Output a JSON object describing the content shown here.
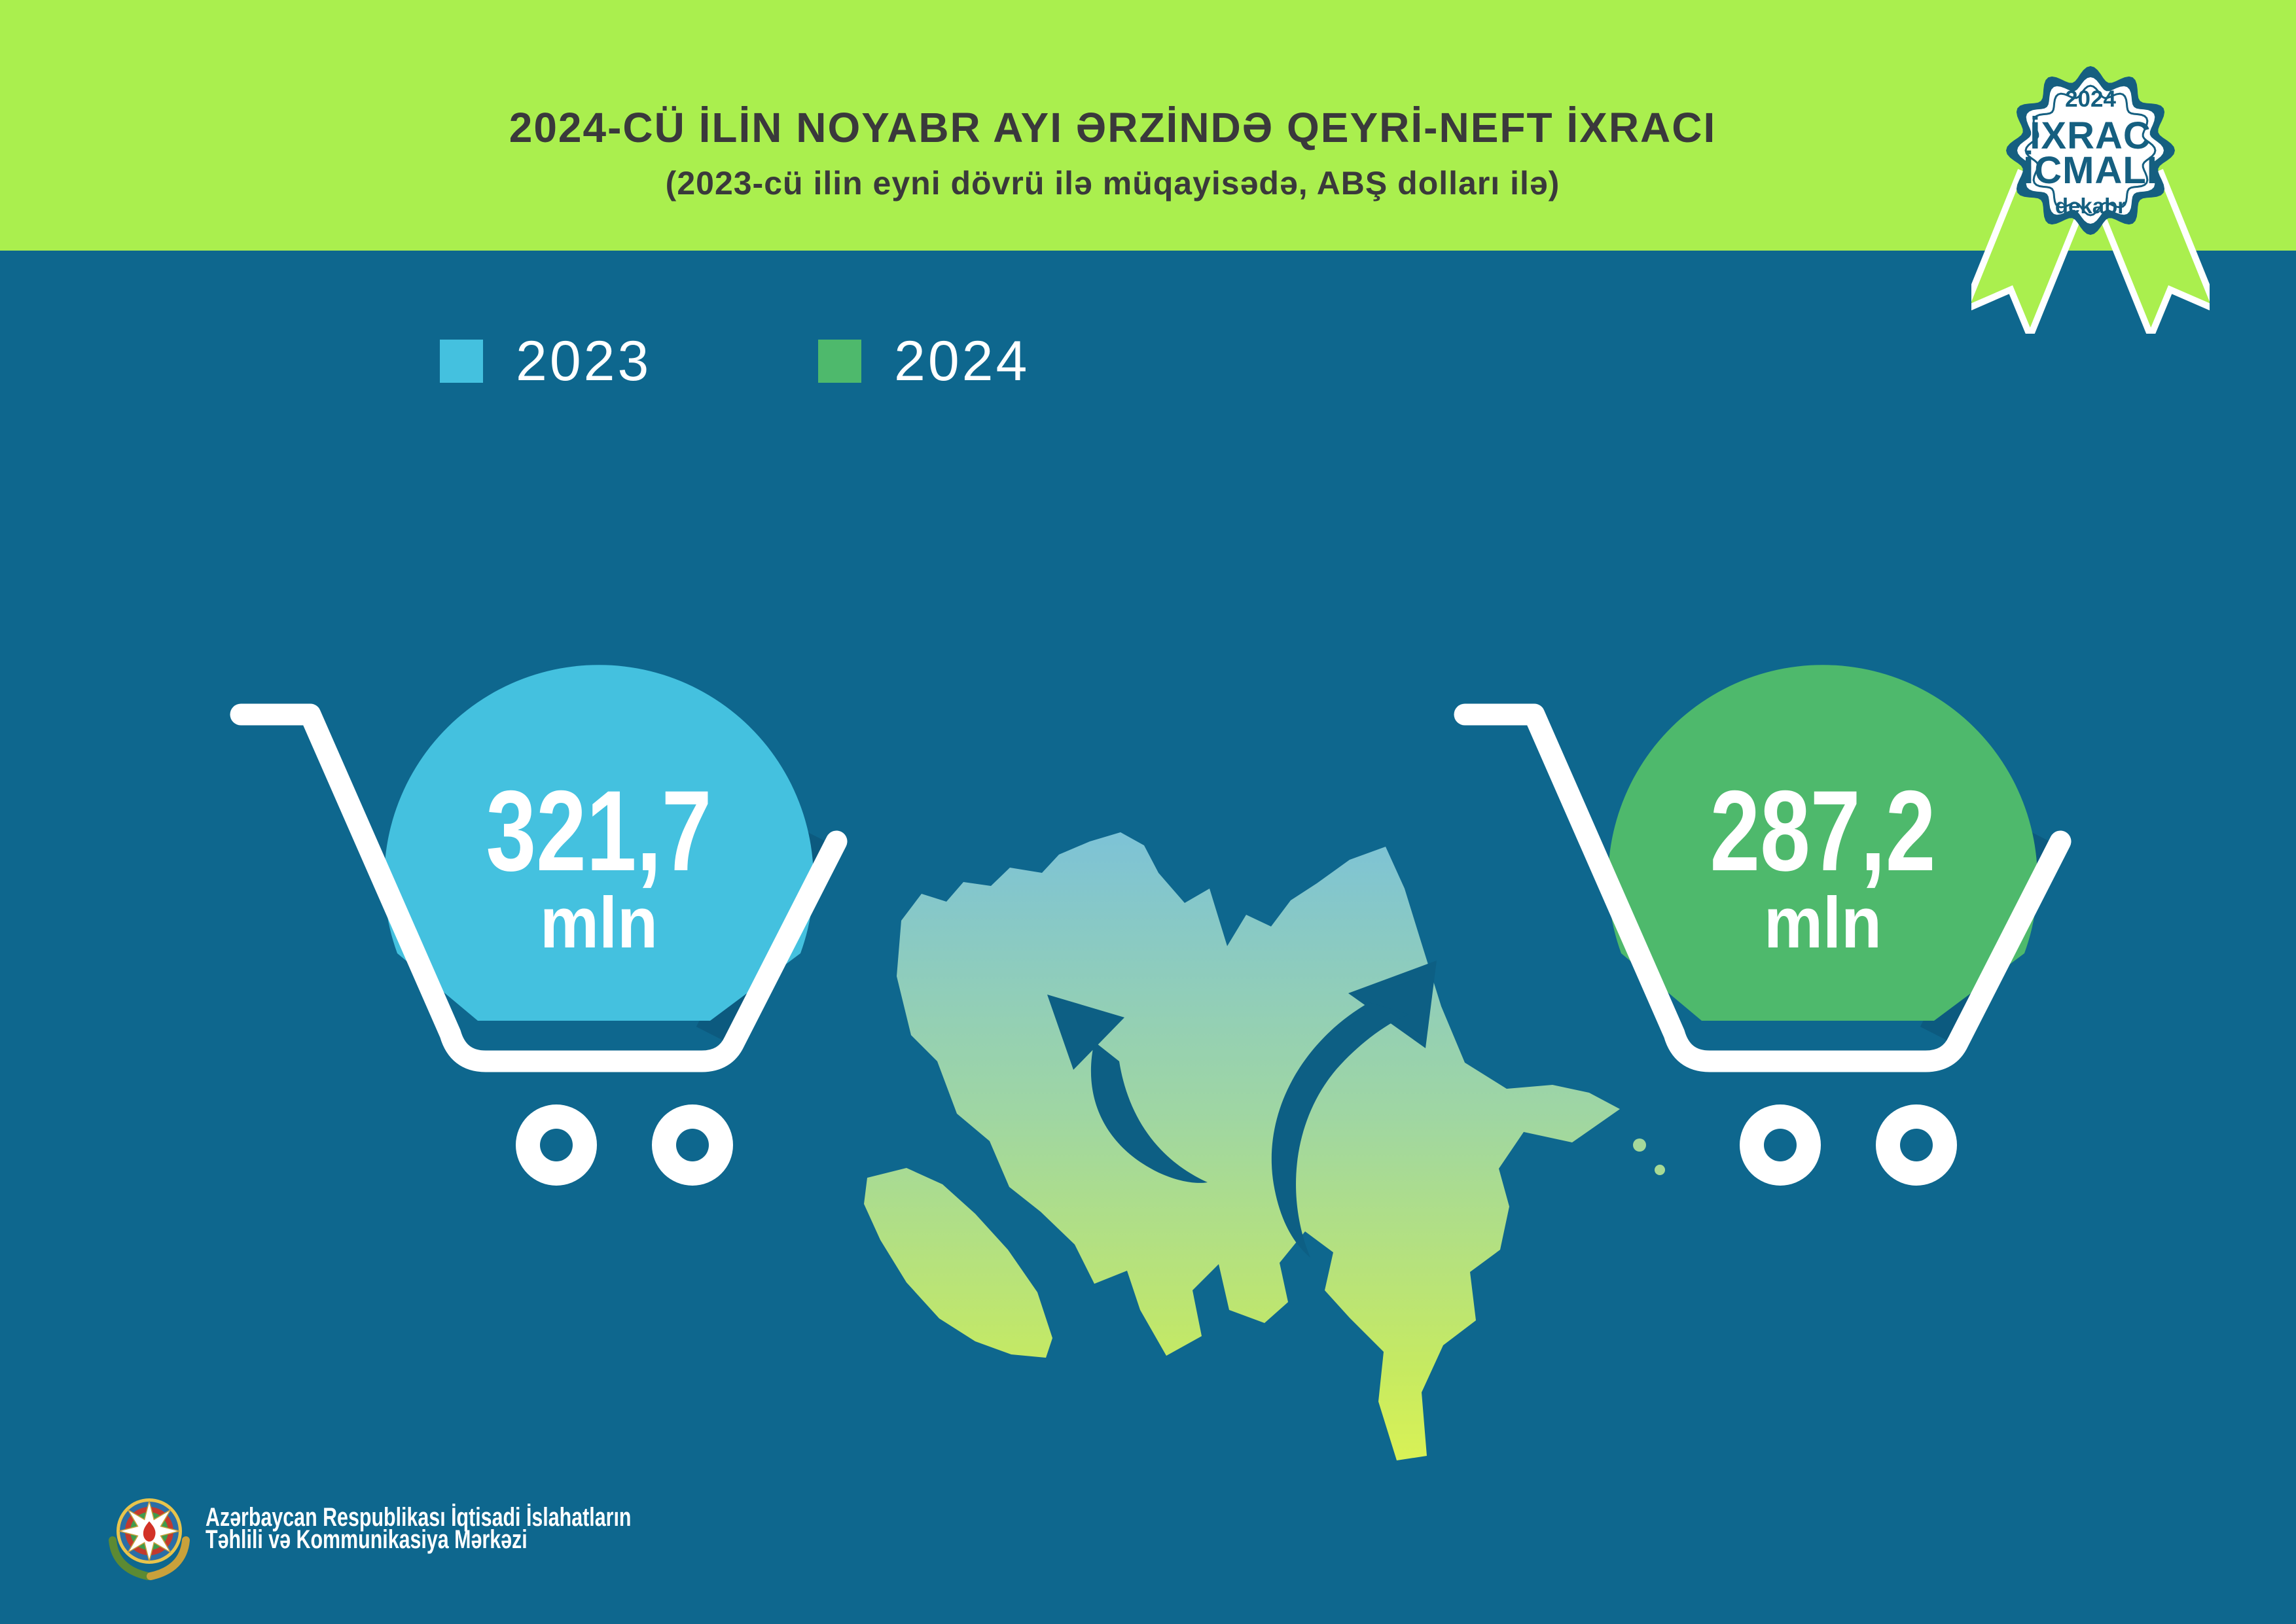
{
  "header": {
    "title": "2024-CÜ İLİN NOYABR AYI ƏRZİNDƏ QEYRİ-NEFT İXRACI",
    "subtitle": "(2023-cü ilin eyni dövrü ilə müqayisədə, ABŞ dolları ilə)"
  },
  "badge": {
    "year": "2024",
    "title_line1": "İXRAC",
    "title_line2": "İCMALI",
    "month": "dekabr"
  },
  "legend": {
    "items": [
      {
        "label": "2023",
        "color": "#44c1df"
      },
      {
        "label": "2024",
        "color": "#4eb96c"
      }
    ]
  },
  "carts": [
    {
      "year": "2023",
      "value": "321,7",
      "unit": "mln",
      "color": "#44c1df"
    },
    {
      "year": "2024",
      "value": "287,2",
      "unit": "mln",
      "color": "#4eb96c"
    }
  ],
  "footer": {
    "org_line1": "Azərbaycan Respublikası İqtisadi İslahatların",
    "org_line2": "Təhlili və Kommunikasiya Mərkəzi"
  },
  "colors": {
    "background": "#0e678e",
    "header_band": "#aaef4e",
    "badge_teal": "#155f80",
    "title_text": "#3a393b",
    "cart_2023": "#44c1df",
    "cart_2024": "#4eb96c",
    "map_gradient_top": "#7cc2d8",
    "map_gradient_bottom": "#daf255",
    "arrow_teal": "#0d5f84",
    "white": "#ffffff"
  },
  "chart_data": {
    "type": "bar",
    "title": "2024-CÜ İLİN NOYABR AYI ƏRZİNDƏ QEYRİ-NEFT İXRACI",
    "subtitle": "(2023-cü ilin eyni dövrü ilə müqayisədə, ABŞ dolları ilə)",
    "categories": [
      "2023",
      "2024"
    ],
    "values": [
      321.7,
      287.2
    ],
    "value_labels": [
      "321,7 mln",
      "287,2 mln"
    ],
    "unit": "mln USD",
    "colors": [
      "#44c1df",
      "#4eb96c"
    ],
    "legend_position": "top-left"
  }
}
